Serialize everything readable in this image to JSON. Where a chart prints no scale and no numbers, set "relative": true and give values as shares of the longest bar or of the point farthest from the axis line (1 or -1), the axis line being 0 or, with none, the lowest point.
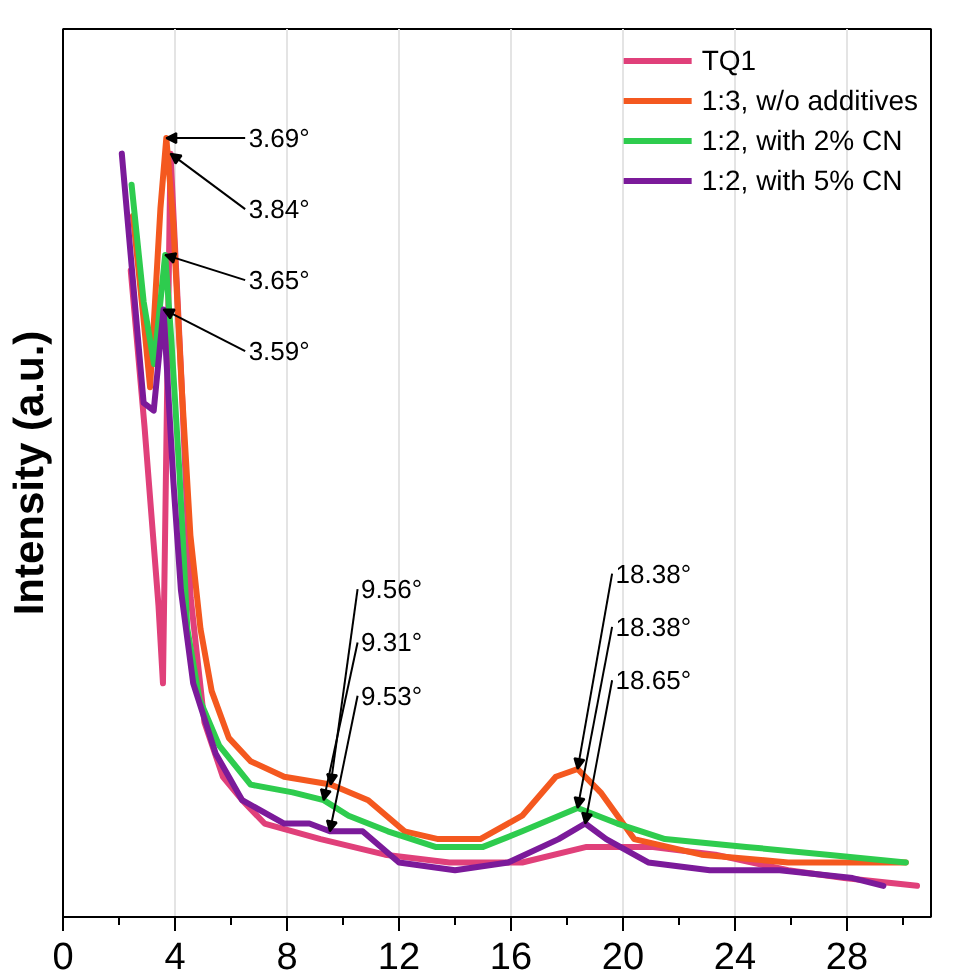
{
  "chart_data": {
    "type": "line",
    "ylabel": "Intensity (a.u.)",
    "relative": true,
    "xlim": [
      0,
      31
    ],
    "xticks": [
      0,
      {
        "value": 2,
        "label": null
      },
      4,
      {
        "value": 6,
        "label": null
      },
      8,
      {
        "value": 10,
        "label": null
      },
      12,
      {
        "value": 14,
        "label": null
      },
      16,
      {
        "value": 18,
        "label": null
      },
      20,
      {
        "value": 22,
        "label": null
      },
      24,
      {
        "value": 26,
        "label": null
      },
      28,
      {
        "value": 30,
        "label": null
      }
    ],
    "grid": "x",
    "legend": "top right",
    "series": [
      {
        "name": "TQ1",
        "color": "#e0407a",
        "x": [
          2.42,
          2.91,
          3.41,
          3.57,
          3.84,
          4.23,
          4.56,
          5.05,
          5.71,
          6.4,
          7.2,
          9.2,
          11.5,
          13.8,
          16.4,
          18.7,
          21.0,
          23.3,
          25.9,
          27.9,
          30.5
        ],
        "values": [
          0.83,
          0.63,
          0.4,
          0.3,
          0.98,
          0.69,
          0.41,
          0.25,
          0.18,
          0.15,
          0.12,
          0.1,
          0.08,
          0.07,
          0.07,
          0.09,
          0.09,
          0.08,
          0.06,
          0.05,
          0.04
        ]
      },
      {
        "name": "1:3, w/o additives",
        "color": "#f4581f",
        "x": [
          2.5,
          2.87,
          3.11,
          3.48,
          3.69,
          3.94,
          4.24,
          4.55,
          4.91,
          5.31,
          5.92,
          6.7,
          7.9,
          9.56,
          10.9,
          12.2,
          13.4,
          14.9,
          16.4,
          17.6,
          18.38,
          19.2,
          20.4,
          22.8,
          25.9,
          30.1
        ],
        "values": [
          0.9,
          0.77,
          0.68,
          0.91,
          1.0,
          0.89,
          0.68,
          0.49,
          0.37,
          0.29,
          0.23,
          0.2,
          0.18,
          0.17,
          0.15,
          0.11,
          0.1,
          0.1,
          0.13,
          0.18,
          0.19,
          0.16,
          0.1,
          0.08,
          0.07,
          0.07
        ]
      },
      {
        "name": "1:2, with 2% CN",
        "color": "#2ecc4e",
        "x": [
          2.45,
          2.88,
          3.25,
          3.65,
          3.87,
          4.16,
          4.44,
          4.87,
          5.58,
          6.7,
          8.2,
          9.31,
          10.2,
          11.6,
          13.3,
          15.0,
          16.4,
          18.38,
          19.8,
          21.5,
          24.4,
          27.3,
          30.1
        ],
        "values": [
          0.94,
          0.79,
          0.71,
          0.85,
          0.74,
          0.57,
          0.37,
          0.28,
          0.22,
          0.17,
          0.16,
          0.15,
          0.13,
          0.11,
          0.09,
          0.09,
          0.11,
          0.14,
          0.12,
          0.1,
          0.09,
          0.08,
          0.07
        ]
      },
      {
        "name": "1:2, with 5% CN",
        "color": "#7b1a9a",
        "x": [
          2.1,
          2.88,
          3.24,
          3.59,
          3.94,
          4.21,
          4.65,
          5.45,
          6.4,
          7.9,
          8.8,
          9.53,
          10.7,
          12.0,
          14.0,
          15.9,
          17.7,
          18.65,
          19.4,
          20.9,
          23.1,
          25.6,
          28.2,
          29.3
        ],
        "values": [
          0.98,
          0.66,
          0.65,
          0.78,
          0.56,
          0.42,
          0.3,
          0.21,
          0.15,
          0.12,
          0.12,
          0.11,
          0.11,
          0.07,
          0.06,
          0.07,
          0.1,
          0.12,
          0.1,
          0.07,
          0.06,
          0.06,
          0.05,
          0.04
        ]
      }
    ],
    "annotations": [
      {
        "text": "3.59°",
        "x": 3.59,
        "y": 0.78
      },
      {
        "text": "3.65°",
        "x": 3.65,
        "y": 0.85
      },
      {
        "text": "3.69°",
        "x": 3.69,
        "y": 1.0
      },
      {
        "text": "3.84°",
        "x": 3.84,
        "y": 0.98
      },
      {
        "text": "9.56°",
        "x": 9.56,
        "y": 0.17
      },
      {
        "text": "9.31°",
        "x": 9.31,
        "y": 0.15
      },
      {
        "text": "9.53°",
        "x": 9.53,
        "y": 0.11
      },
      {
        "text": "18.38°",
        "x": 18.38,
        "y": 0.19
      },
      {
        "text": "18.38°",
        "x": 18.38,
        "y": 0.14
      },
      {
        "text": "18.65°",
        "x": 18.65,
        "y": 0.12
      }
    ]
  }
}
